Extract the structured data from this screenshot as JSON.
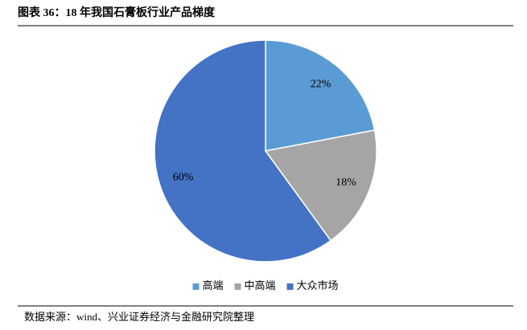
{
  "chart_data": {
    "type": "pie",
    "title": "图表 36：18 年我国石膏板行业产品梯度",
    "categories": [
      "高端",
      "中高端",
      "大众市场"
    ],
    "values": [
      22,
      18,
      60
    ],
    "value_labels": [
      "22%",
      "18%",
      "60%"
    ],
    "colors": [
      "#5b9bd5",
      "#a5a5a5",
      "#4472c4"
    ],
    "legend": "bottom",
    "source": "数据来源：wind、兴业证券经济与金融研究院整理"
  }
}
